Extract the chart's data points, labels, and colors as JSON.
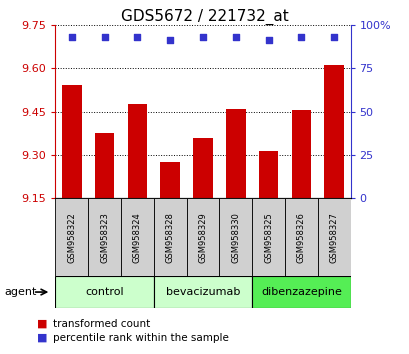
{
  "title": "GDS5672 / 221732_at",
  "samples": [
    "GSM958322",
    "GSM958323",
    "GSM958324",
    "GSM958328",
    "GSM958329",
    "GSM958330",
    "GSM958325",
    "GSM958326",
    "GSM958327"
  ],
  "bar_values": [
    9.54,
    9.375,
    9.475,
    9.275,
    9.36,
    9.46,
    9.315,
    9.455,
    9.61
  ],
  "percentile_values": [
    93,
    93,
    93,
    91,
    93,
    93,
    91,
    93,
    93
  ],
  "ylim_left": [
    9.15,
    9.75
  ],
  "ylim_right": [
    0,
    100
  ],
  "yticks_left": [
    9.15,
    9.3,
    9.45,
    9.6,
    9.75
  ],
  "yticks_right": [
    0,
    25,
    50,
    75,
    100
  ],
  "bar_color": "#cc0000",
  "dot_color": "#3333cc",
  "grid_color": "#000000",
  "groups": [
    {
      "label": "control",
      "start": 0,
      "end": 3,
      "color": "#ccffcc"
    },
    {
      "label": "bevacizumab",
      "start": 3,
      "end": 6,
      "color": "#ccffcc"
    },
    {
      "label": "dibenzazepine",
      "start": 6,
      "end": 9,
      "color": "#55ee55"
    }
  ],
  "legend_items": [
    {
      "label": "transformed count",
      "color": "#cc0000"
    },
    {
      "label": "percentile rank within the sample",
      "color": "#3333cc"
    }
  ],
  "agent_label": "agent",
  "left_tick_color": "#cc0000",
  "right_tick_color": "#3333cc",
  "title_fontsize": 11,
  "tick_fontsize": 8,
  "sample_fontsize": 6,
  "group_fontsize": 8,
  "legend_fontsize": 7.5
}
